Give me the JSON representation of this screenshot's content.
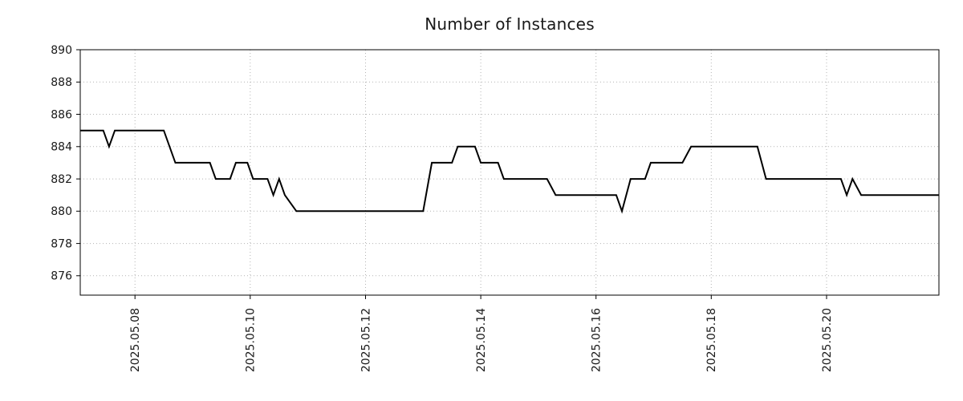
{
  "chart_data": {
    "type": "line",
    "title": "Number of Instances",
    "xlabel": "",
    "ylabel": "",
    "xlim": [
      7.05,
      21.95
    ],
    "ylim": [
      874.8,
      890
    ],
    "grid": "dotted",
    "grid_color": "#b3b3b3",
    "axis_color": "#000000",
    "text_color": "#1a1a1a",
    "line_color": "#000000",
    "line_width": 2,
    "legend": "none",
    "x_ticks": [
      {
        "value": 8,
        "label": "2025.05.08"
      },
      {
        "value": 10,
        "label": "2025.05.10"
      },
      {
        "value": 12,
        "label": "2025.05.12"
      },
      {
        "value": 14,
        "label": "2025.05.14"
      },
      {
        "value": 16,
        "label": "2025.05.16"
      },
      {
        "value": 18,
        "label": "2025.05.18"
      },
      {
        "value": 20,
        "label": "2025.05.20"
      }
    ],
    "y_ticks": [
      {
        "value": 876,
        "label": "876"
      },
      {
        "value": 878,
        "label": "878"
      },
      {
        "value": 880,
        "label": "880"
      },
      {
        "value": 882,
        "label": "882"
      },
      {
        "value": 884,
        "label": "884"
      },
      {
        "value": 886,
        "label": "886"
      },
      {
        "value": 888,
        "label": "888"
      },
      {
        "value": 890,
        "label": "890"
      }
    ],
    "series": [
      {
        "name": "instances",
        "points": [
          [
            7.05,
            885
          ],
          [
            7.45,
            885
          ],
          [
            7.55,
            884
          ],
          [
            7.65,
            885
          ],
          [
            8.5,
            885
          ],
          [
            8.7,
            883
          ],
          [
            9.3,
            883
          ],
          [
            9.4,
            882
          ],
          [
            9.65,
            882
          ],
          [
            9.75,
            883
          ],
          [
            9.95,
            883
          ],
          [
            10.05,
            882
          ],
          [
            10.3,
            882
          ],
          [
            10.4,
            881
          ],
          [
            10.5,
            882
          ],
          [
            10.6,
            881
          ],
          [
            10.8,
            880
          ],
          [
            13.0,
            880
          ],
          [
            13.15,
            883
          ],
          [
            13.5,
            883
          ],
          [
            13.6,
            884
          ],
          [
            13.9,
            884
          ],
          [
            14.0,
            883
          ],
          [
            14.3,
            883
          ],
          [
            14.4,
            882
          ],
          [
            15.15,
            882
          ],
          [
            15.3,
            881
          ],
          [
            16.35,
            881
          ],
          [
            16.45,
            880
          ],
          [
            16.6,
            882
          ],
          [
            16.85,
            882
          ],
          [
            16.95,
            883
          ],
          [
            17.5,
            883
          ],
          [
            17.65,
            884
          ],
          [
            18.8,
            884
          ],
          [
            18.95,
            882
          ],
          [
            20.25,
            882
          ],
          [
            20.35,
            881
          ],
          [
            20.45,
            882
          ],
          [
            20.6,
            881
          ],
          [
            21.95,
            881
          ]
        ]
      }
    ]
  }
}
